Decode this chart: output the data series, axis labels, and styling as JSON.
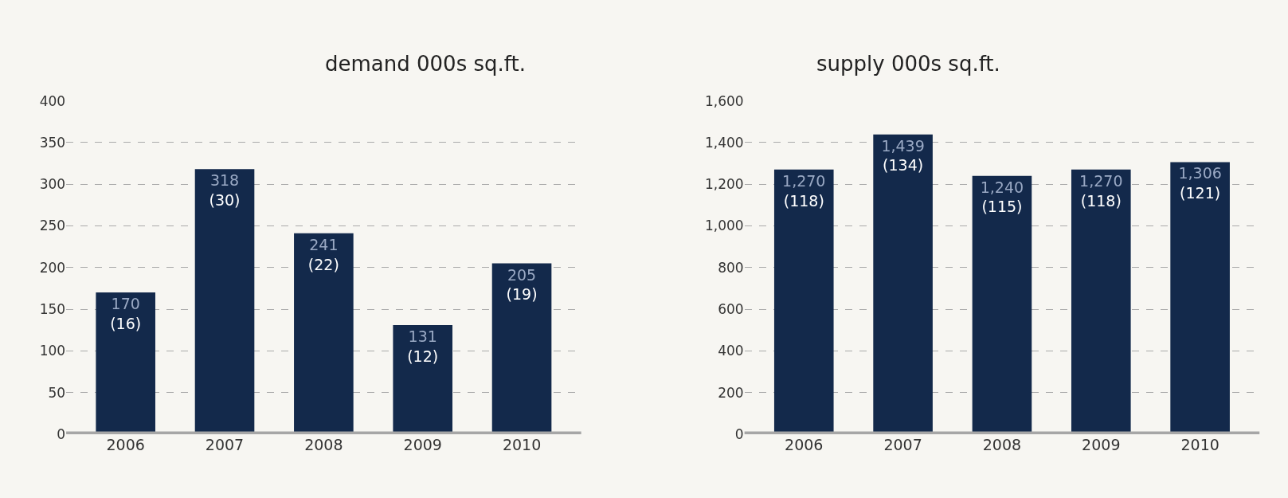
{
  "chart_data": [
    {
      "type": "bar",
      "title": "demand 000s sq.ft.",
      "categories": [
        "2006",
        "2007",
        "2008",
        "2009",
        "2010"
      ],
      "values": [
        170,
        318,
        241,
        131,
        205
      ],
      "value_labels": [
        "170\n(16)",
        "318\n(30)",
        "241\n(22)",
        "131\n(12)",
        "205\n(19)"
      ],
      "color": "#13294b",
      "ylim": [
        0,
        400
      ],
      "yticks": [
        0,
        50,
        100,
        150,
        200,
        250,
        300,
        350,
        400
      ],
      "grid": "y"
    },
    {
      "type": "bar",
      "title": "supply 000s sq.ft.",
      "categories": [
        "2006",
        "2007",
        "2008",
        "2009",
        "2010"
      ],
      "values": [
        1270,
        1439,
        1240,
        1270,
        1306
      ],
      "value_labels": [
        "1,270\n(118)",
        "1,439\n(134)",
        "1,240\n(115)",
        "1,270\n(118)",
        "1,306\n(121)"
      ],
      "color": "#13294b",
      "ylim": [
        0,
        1600
      ],
      "yticks": [
        0,
        200,
        400,
        600,
        800,
        {
          "value": 1000,
          "label": "1,000"
        },
        {
          "value": 1200,
          "label": "1,200"
        },
        {
          "value": 1400,
          "label": "1,400"
        },
        {
          "value": 1600,
          "label": "1,600"
        }
      ],
      "grid": "y"
    }
  ]
}
